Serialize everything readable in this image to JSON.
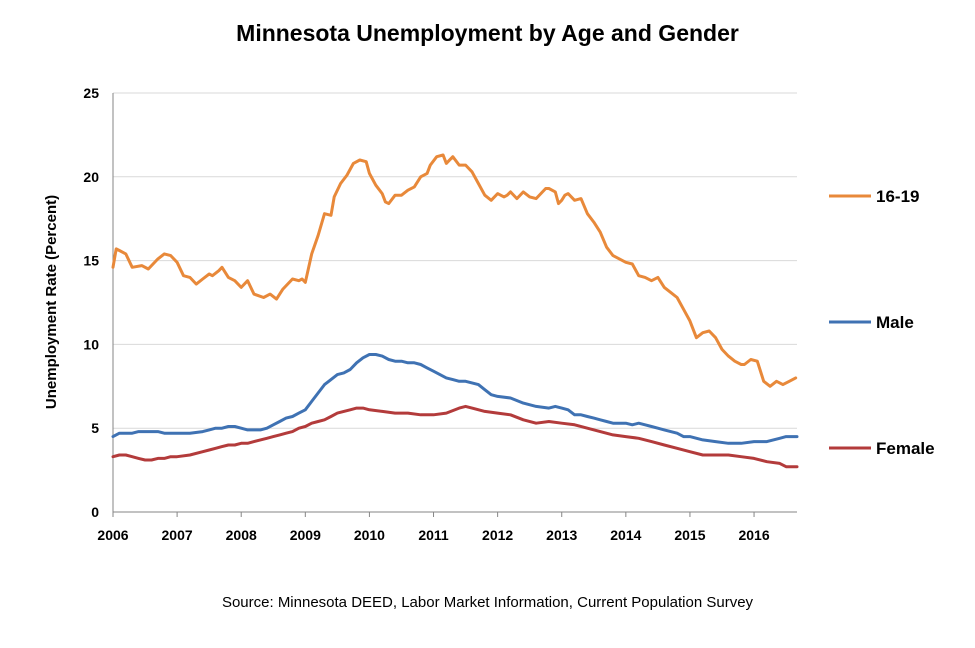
{
  "chart_data": {
    "type": "line",
    "title": "Minnesota Unemployment by Age and Gender",
    "xlabel": "",
    "ylabel": "Unemployment  Rate  (Percent)",
    "source": "Source: Minnesota DEED, Labor Market Information, Current Population Survey",
    "xlim": [
      2006.0,
      2016.67
    ],
    "ylim": [
      0,
      25
    ],
    "grid": true,
    "legend_position": "right",
    "x_ticks": [
      2006,
      2007,
      2008,
      2009,
      2010,
      2011,
      2012,
      2013,
      2014,
      2015,
      2016
    ],
    "y_ticks": [
      0,
      5,
      10,
      15,
      20,
      25
    ],
    "series": [
      {
        "name": "16-19",
        "color": "#E8893A",
        "x": [
          2006.0,
          2006.05,
          2006.1,
          2006.2,
          2006.3,
          2006.45,
          2006.55,
          2006.7,
          2006.8,
          2006.9,
          2007.0,
          2007.1,
          2007.2,
          2007.3,
          2007.4,
          2007.5,
          2007.55,
          2007.65,
          2007.7,
          2007.8,
          2007.9,
          2008.0,
          2008.1,
          2008.2,
          2008.35,
          2008.45,
          2008.55,
          2008.65,
          2008.8,
          2008.9,
          2008.95,
          2009.0,
          2009.1,
          2009.2,
          2009.3,
          2009.4,
          2009.45,
          2009.55,
          2009.65,
          2009.75,
          2009.85,
          2009.95,
          2010.0,
          2010.1,
          2010.2,
          2010.25,
          2010.3,
          2010.4,
          2010.5,
          2010.6,
          2010.7,
          2010.8,
          2010.9,
          2010.95,
          2011.05,
          2011.15,
          2011.2,
          2011.3,
          2011.4,
          2011.5,
          2011.6,
          2011.7,
          2011.8,
          2011.9,
          2012.0,
          2012.1,
          2012.15,
          2012.2,
          2012.3,
          2012.4,
          2012.5,
          2012.6,
          2012.7,
          2012.75,
          2012.8,
          2012.9,
          2012.95,
          2013.0,
          2013.05,
          2013.1,
          2013.2,
          2013.3,
          2013.4,
          2013.5,
          2013.6,
          2013.7,
          2013.8,
          2013.9,
          2014.0,
          2014.1,
          2014.2,
          2014.3,
          2014.4,
          2014.5,
          2014.6,
          2014.7,
          2014.8,
          2014.9,
          2015.0,
          2015.1,
          2015.2,
          2015.3,
          2015.4,
          2015.5,
          2015.6,
          2015.7,
          2015.8,
          2015.85,
          2015.95,
          2016.05,
          2016.15,
          2016.25,
          2016.35,
          2016.45,
          2016.55,
          2016.65
        ],
        "values": [
          14.6,
          15.7,
          15.6,
          15.4,
          14.6,
          14.7,
          14.5,
          15.1,
          15.4,
          15.3,
          14.9,
          14.1,
          14.0,
          13.6,
          13.9,
          14.2,
          14.1,
          14.4,
          14.6,
          14.0,
          13.8,
          13.4,
          13.8,
          13.0,
          12.8,
          13.0,
          12.7,
          13.3,
          13.9,
          13.8,
          13.9,
          13.7,
          15.4,
          16.5,
          17.8,
          17.7,
          18.8,
          19.6,
          20.1,
          20.8,
          21.0,
          20.9,
          20.2,
          19.5,
          19.0,
          18.5,
          18.4,
          18.9,
          18.9,
          19.2,
          19.4,
          20.0,
          20.2,
          20.7,
          21.2,
          21.3,
          20.8,
          21.2,
          20.7,
          20.7,
          20.3,
          19.6,
          18.9,
          18.6,
          19.0,
          18.8,
          18.9,
          19.1,
          18.7,
          19.1,
          18.8,
          18.7,
          19.1,
          19.3,
          19.3,
          19.1,
          18.4,
          18.6,
          18.9,
          19.0,
          18.6,
          18.7,
          17.8,
          17.3,
          16.7,
          15.8,
          15.3,
          15.1,
          14.9,
          14.8,
          14.1,
          14.0,
          13.8,
          14.0,
          13.4,
          13.1,
          12.8,
          12.1,
          11.4,
          10.4,
          10.7,
          10.8,
          10.4,
          9.7,
          9.3,
          9.0,
          8.8,
          8.8,
          9.1,
          9.0,
          7.8,
          7.5,
          7.8,
          7.6,
          7.8,
          8.0
        ]
      },
      {
        "name": "Male",
        "color": "#3F72B3",
        "x": [
          2006.0,
          2006.1,
          2006.2,
          2006.3,
          2006.4,
          2006.5,
          2006.6,
          2006.7,
          2006.8,
          2006.9,
          2007.0,
          2007.2,
          2007.4,
          2007.5,
          2007.6,
          2007.7,
          2007.8,
          2007.9,
          2008.0,
          2008.1,
          2008.2,
          2008.3,
          2008.4,
          2008.5,
          2008.6,
          2008.7,
          2008.8,
          2008.9,
          2009.0,
          2009.1,
          2009.2,
          2009.3,
          2009.4,
          2009.5,
          2009.6,
          2009.7,
          2009.8,
          2009.9,
          2010.0,
          2010.1,
          2010.2,
          2010.3,
          2010.4,
          2010.5,
          2010.6,
          2010.7,
          2010.8,
          2010.9,
          2011.0,
          2011.1,
          2011.2,
          2011.3,
          2011.4,
          2011.5,
          2011.6,
          2011.7,
          2011.8,
          2011.9,
          2012.0,
          2012.2,
          2012.4,
          2012.6,
          2012.8,
          2012.9,
          2013.0,
          2013.1,
          2013.2,
          2013.3,
          2013.4,
          2013.5,
          2013.6,
          2013.7,
          2013.8,
          2013.9,
          2014.0,
          2014.1,
          2014.2,
          2014.3,
          2014.4,
          2014.5,
          2014.6,
          2014.7,
          2014.8,
          2014.9,
          2015.0,
          2015.2,
          2015.4,
          2015.6,
          2015.8,
          2016.0,
          2016.2,
          2016.3,
          2016.4,
          2016.5,
          2016.67
        ],
        "values": [
          4.5,
          4.7,
          4.7,
          4.7,
          4.8,
          4.8,
          4.8,
          4.8,
          4.7,
          4.7,
          4.7,
          4.7,
          4.8,
          4.9,
          5.0,
          5.0,
          5.1,
          5.1,
          5.0,
          4.9,
          4.9,
          4.9,
          5.0,
          5.2,
          5.4,
          5.6,
          5.7,
          5.9,
          6.1,
          6.6,
          7.1,
          7.6,
          7.9,
          8.2,
          8.3,
          8.5,
          8.9,
          9.2,
          9.4,
          9.4,
          9.3,
          9.1,
          9.0,
          9.0,
          8.9,
          8.9,
          8.8,
          8.6,
          8.4,
          8.2,
          8.0,
          7.9,
          7.8,
          7.8,
          7.7,
          7.6,
          7.3,
          7.0,
          6.9,
          6.8,
          6.5,
          6.3,
          6.2,
          6.3,
          6.2,
          6.1,
          5.8,
          5.8,
          5.7,
          5.6,
          5.5,
          5.4,
          5.3,
          5.3,
          5.3,
          5.2,
          5.3,
          5.2,
          5.1,
          5.0,
          4.9,
          4.8,
          4.7,
          4.5,
          4.5,
          4.3,
          4.2,
          4.1,
          4.1,
          4.2,
          4.2,
          4.3,
          4.4,
          4.5,
          4.5
        ]
      },
      {
        "name": "Female",
        "color": "#B33B3B",
        "x": [
          2006.0,
          2006.1,
          2006.2,
          2006.3,
          2006.4,
          2006.5,
          2006.6,
          2006.7,
          2006.8,
          2006.9,
          2007.0,
          2007.2,
          2007.4,
          2007.5,
          2007.6,
          2007.7,
          2007.8,
          2007.9,
          2008.0,
          2008.1,
          2008.2,
          2008.3,
          2008.4,
          2008.5,
          2008.6,
          2008.7,
          2008.8,
          2008.9,
          2009.0,
          2009.1,
          2009.2,
          2009.3,
          2009.4,
          2009.5,
          2009.6,
          2009.7,
          2009.8,
          2009.9,
          2010.0,
          2010.2,
          2010.4,
          2010.6,
          2010.8,
          2010.9,
          2011.0,
          2011.2,
          2011.4,
          2011.5,
          2011.6,
          2011.8,
          2012.0,
          2012.2,
          2012.4,
          2012.6,
          2012.8,
          2013.0,
          2013.2,
          2013.4,
          2013.6,
          2013.8,
          2014.0,
          2014.2,
          2014.4,
          2014.6,
          2014.8,
          2015.0,
          2015.2,
          2015.4,
          2015.6,
          2015.8,
          2016.0,
          2016.2,
          2016.4,
          2016.5,
          2016.67
        ],
        "values": [
          3.3,
          3.4,
          3.4,
          3.3,
          3.2,
          3.1,
          3.1,
          3.2,
          3.2,
          3.3,
          3.3,
          3.4,
          3.6,
          3.7,
          3.8,
          3.9,
          4.0,
          4.0,
          4.1,
          4.1,
          4.2,
          4.3,
          4.4,
          4.5,
          4.6,
          4.7,
          4.8,
          5.0,
          5.1,
          5.3,
          5.4,
          5.5,
          5.7,
          5.9,
          6.0,
          6.1,
          6.2,
          6.2,
          6.1,
          6.0,
          5.9,
          5.9,
          5.8,
          5.8,
          5.8,
          5.9,
          6.2,
          6.3,
          6.2,
          6.0,
          5.9,
          5.8,
          5.5,
          5.3,
          5.4,
          5.3,
          5.2,
          5.0,
          4.8,
          4.6,
          4.5,
          4.4,
          4.2,
          4.0,
          3.8,
          3.6,
          3.4,
          3.4,
          3.4,
          3.3,
          3.2,
          3.0,
          2.9,
          2.7,
          2.7
        ]
      }
    ]
  }
}
